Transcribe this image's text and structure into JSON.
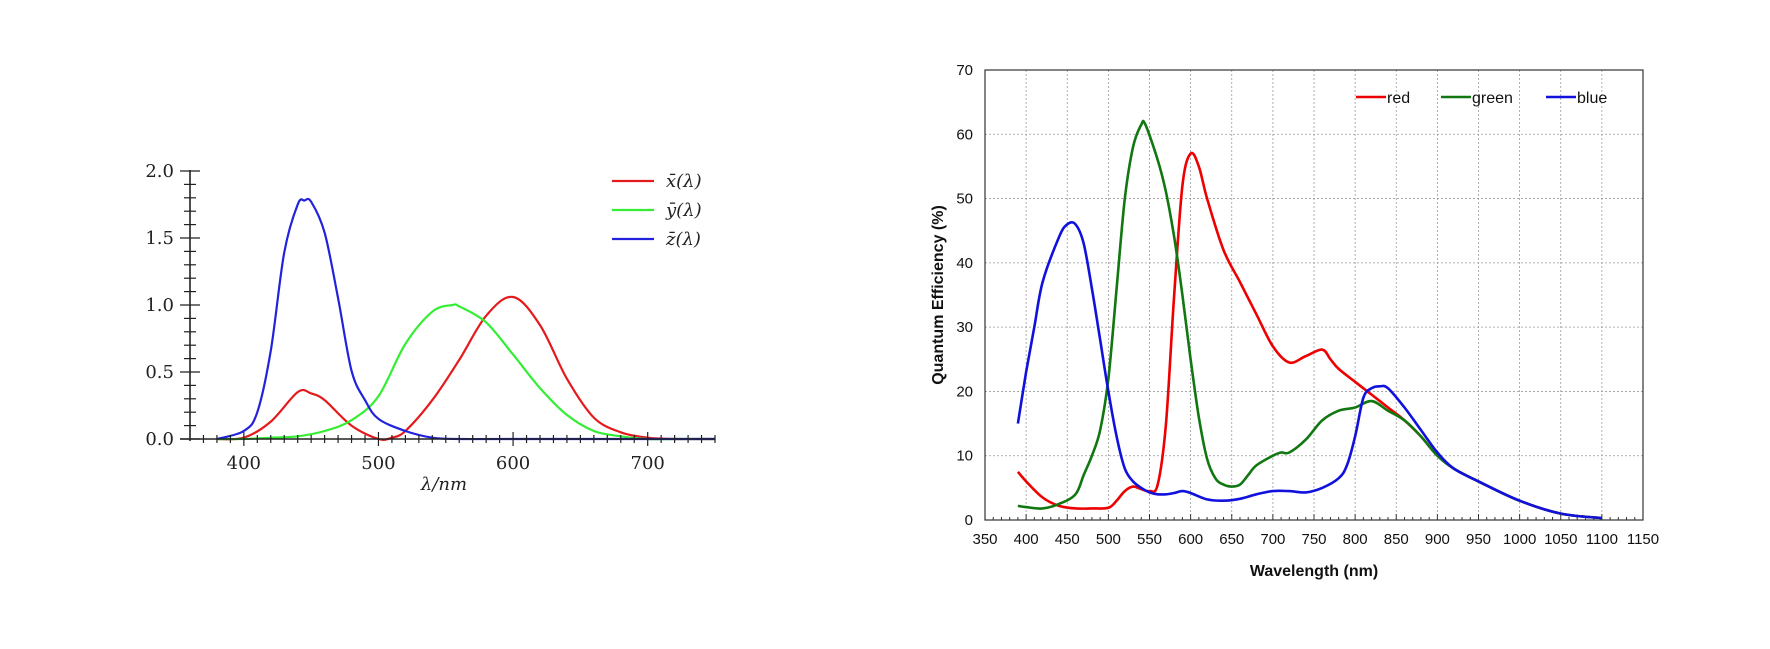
{
  "chart_data": [
    {
      "type": "line",
      "xlabel": "λ/nm",
      "ylabel": "",
      "xlim": [
        360,
        750
      ],
      "ylim": [
        0,
        2.0
      ],
      "x_ticks": [
        "400",
        "500",
        "600",
        "700"
      ],
      "y_ticks": [
        "0.0",
        "0.5",
        "1.0",
        "1.5",
        "2.0"
      ],
      "legend_position": "top-right",
      "series": [
        {
          "name": "x̄(λ)",
          "color": "#e41a1c",
          "x": [
            380,
            400,
            420,
            440,
            450,
            460,
            480,
            500,
            510,
            520,
            540,
            560,
            580,
            600,
            620,
            640,
            660,
            680,
            700,
            720,
            750
          ],
          "y": [
            0.0,
            0.01,
            0.13,
            0.35,
            0.34,
            0.29,
            0.1,
            0.0,
            0.01,
            0.06,
            0.29,
            0.59,
            0.92,
            1.06,
            0.85,
            0.45,
            0.16,
            0.05,
            0.01,
            0.0,
            0.0
          ]
        },
        {
          "name": "ȳ(λ)",
          "color": "#33ee33",
          "x": [
            380,
            400,
            420,
            440,
            460,
            480,
            500,
            520,
            540,
            555,
            560,
            580,
            600,
            620,
            640,
            660,
            680,
            700,
            720,
            750
          ],
          "y": [
            0.0,
            0.0,
            0.01,
            0.02,
            0.06,
            0.14,
            0.32,
            0.71,
            0.95,
            1.0,
            0.99,
            0.87,
            0.63,
            0.38,
            0.18,
            0.06,
            0.02,
            0.0,
            0.0,
            0.0
          ]
        },
        {
          "name": "z̄(λ)",
          "color": "#2222dd",
          "x": [
            380,
            400,
            410,
            420,
            430,
            440,
            445,
            450,
            460,
            470,
            480,
            490,
            500,
            520,
            540,
            560,
            600,
            750
          ],
          "y": [
            0.0,
            0.06,
            0.2,
            0.66,
            1.39,
            1.75,
            1.78,
            1.77,
            1.54,
            1.05,
            0.51,
            0.29,
            0.15,
            0.06,
            0.01,
            0.0,
            0.0,
            0.0
          ]
        }
      ]
    },
    {
      "type": "line",
      "xlabel": "Wavelength (nm)",
      "ylabel": "Quantum Efficiency (%)",
      "xlim": [
        350,
        1150
      ],
      "ylim": [
        0,
        70
      ],
      "x_ticks": [
        "350",
        "400",
        "450",
        "500",
        "550",
        "600",
        "650",
        "700",
        "750",
        "800",
        "850",
        "900",
        "950",
        "1000",
        "1050",
        "1100",
        "1150"
      ],
      "y_ticks": [
        "0",
        "10",
        "20",
        "30",
        "40",
        "50",
        "60",
        "70"
      ],
      "grid": true,
      "legend_position": "top-right",
      "series": [
        {
          "name": "red",
          "color": "#ee0000",
          "x": [
            390,
            400,
            420,
            440,
            460,
            480,
            500,
            510,
            520,
            530,
            540,
            550,
            560,
            570,
            580,
            590,
            600,
            610,
            620,
            640,
            660,
            680,
            700,
            720,
            740,
            760,
            770,
            780,
            800,
            820,
            840,
            860,
            880,
            900,
            920,
            950,
            1000,
            1050,
            1100
          ],
          "y": [
            7.5,
            6,
            3.5,
            2.2,
            1.8,
            1.8,
            1.9,
            3,
            4.5,
            5.2,
            4.8,
            4.5,
            5.5,
            15,
            35,
            52,
            57,
            55,
            50,
            42,
            37,
            32,
            27,
            24.5,
            25.5,
            26.5,
            25,
            23.5,
            21.5,
            19.5,
            17.5,
            15.5,
            13,
            10,
            8,
            6,
            3,
            1,
            0.3
          ]
        },
        {
          "name": "green",
          "color": "#117711",
          "x": [
            390,
            400,
            420,
            440,
            460,
            470,
            480,
            490,
            500,
            510,
            520,
            530,
            540,
            545,
            560,
            570,
            580,
            590,
            600,
            610,
            620,
            630,
            640,
            650,
            660,
            670,
            680,
            700,
            710,
            720,
            740,
            760,
            780,
            800,
            820,
            840,
            860,
            880,
            900,
            920,
            950,
            1000,
            1050,
            1100
          ],
          "y": [
            2.2,
            2,
            1.8,
            2.5,
            4,
            7,
            10,
            14,
            22,
            36,
            50,
            58,
            61.5,
            61.5,
            56,
            51,
            44,
            35,
            25,
            16,
            9.5,
            6.5,
            5.5,
            5.2,
            5.5,
            7,
            8.5,
            10,
            10.5,
            10.5,
            12.5,
            15.5,
            17,
            17.5,
            18.5,
            17,
            15.5,
            13,
            10,
            8,
            6,
            3,
            1,
            0.3
          ]
        },
        {
          "name": "blue",
          "color": "#1111dd",
          "x": [
            390,
            400,
            410,
            420,
            440,
            450,
            460,
            470,
            480,
            490,
            500,
            510,
            520,
            530,
            540,
            550,
            560,
            570,
            580,
            590,
            600,
            620,
            640,
            660,
            680,
            700,
            720,
            740,
            760,
            780,
            790,
            800,
            810,
            820,
            830,
            840,
            860,
            880,
            900,
            920,
            950,
            1000,
            1050,
            1100
          ],
          "y": [
            15,
            23,
            30,
            37,
            44,
            46,
            46,
            43,
            36,
            28,
            20,
            13,
            8,
            6,
            5,
            4.3,
            4,
            4,
            4.2,
            4.5,
            4.2,
            3.2,
            3,
            3.3,
            4,
            4.5,
            4.5,
            4.3,
            5,
            6.5,
            8.5,
            13,
            19,
            20.5,
            20.8,
            20.5,
            17.5,
            14,
            10.5,
            8,
            6,
            3,
            1,
            0.3
          ]
        }
      ]
    }
  ]
}
